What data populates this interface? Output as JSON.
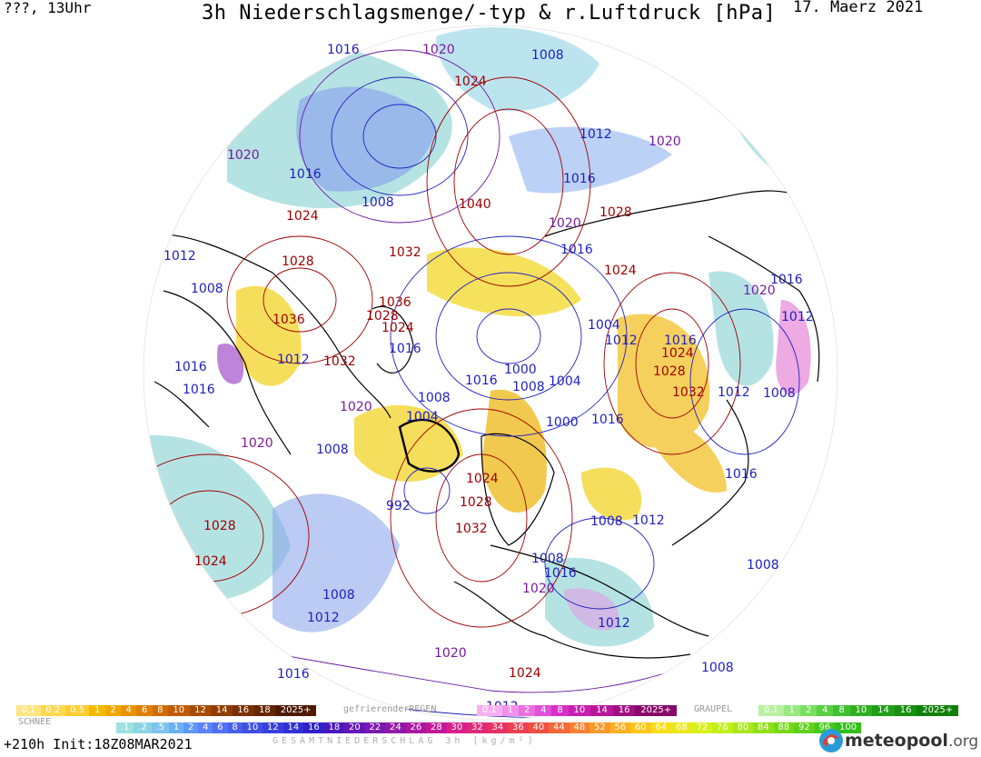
{
  "header": {
    "left": "???, 13Uhr",
    "title": "3h Niederschlagsmenge/-typ & r.Luftdruck [hPa]",
    "date": "17. Maerz 2021"
  },
  "isobar_labels": [
    {
      "text": "1016",
      "color": "#2020c0"
    },
    {
      "text": "1020",
      "color": "#7a1aa0"
    },
    {
      "text": "1008",
      "color": "#2020c0"
    },
    {
      "text": "1024",
      "color": "#a00000"
    },
    {
      "text": "1020",
      "color": "#7a1aa0"
    },
    {
      "text": "1016",
      "color": "#2020c0"
    },
    {
      "text": "1008",
      "color": "#2020c0"
    },
    {
      "text": "1024",
      "color": "#a00000"
    },
    {
      "text": "1040",
      "color": "#a00000"
    },
    {
      "text": "1012",
      "color": "#2020c0"
    },
    {
      "text": "1020",
      "color": "#7a1aa0"
    },
    {
      "text": "1016",
      "color": "#2020c0"
    },
    {
      "text": "1028",
      "color": "#a00000"
    },
    {
      "text": "1020",
      "color": "#7a1aa0"
    },
    {
      "text": "1012",
      "color": "#2020c0"
    },
    {
      "text": "1028",
      "color": "#a00000"
    },
    {
      "text": "1032",
      "color": "#a00000"
    },
    {
      "text": "1016",
      "color": "#2020c0"
    },
    {
      "text": "1024",
      "color": "#a00000"
    },
    {
      "text": "1008",
      "color": "#2020c0"
    },
    {
      "text": "1036",
      "color": "#a00000"
    },
    {
      "text": "1028",
      "color": "#a00000"
    },
    {
      "text": "1024",
      "color": "#a00000"
    },
    {
      "text": "1036",
      "color": "#a00000"
    },
    {
      "text": "1020",
      "color": "#7a1aa0"
    },
    {
      "text": "1016",
      "color": "#2020c0"
    },
    {
      "text": "1004",
      "color": "#2020c0"
    },
    {
      "text": "1012",
      "color": "#2020c0"
    },
    {
      "text": "1016",
      "color": "#2020c0"
    },
    {
      "text": "1012",
      "color": "#2020c0"
    },
    {
      "text": "1032",
      "color": "#a00000"
    },
    {
      "text": "1016",
      "color": "#2020c0"
    },
    {
      "text": "1024",
      "color": "#a00000"
    },
    {
      "text": "1012",
      "color": "#2020c0"
    },
    {
      "text": "1016",
      "color": "#2020c0"
    },
    {
      "text": "1016",
      "color": "#2020c0"
    },
    {
      "text": "1000",
      "color": "#2020c0"
    },
    {
      "text": "1008",
      "color": "#2020c0"
    },
    {
      "text": "1004",
      "color": "#2020c0"
    },
    {
      "text": "1028",
      "color": "#a00000"
    },
    {
      "text": "1016",
      "color": "#2020c0"
    },
    {
      "text": "1032",
      "color": "#a00000"
    },
    {
      "text": "1012",
      "color": "#2020c0"
    },
    {
      "text": "1008",
      "color": "#2020c0"
    },
    {
      "text": "1020",
      "color": "#7a1aa0"
    },
    {
      "text": "1008",
      "color": "#2020c0"
    },
    {
      "text": "1004",
      "color": "#2020c0"
    },
    {
      "text": "1000",
      "color": "#2020c0"
    },
    {
      "text": "1016",
      "color": "#2020c0"
    },
    {
      "text": "1020",
      "color": "#7a1aa0"
    },
    {
      "text": "1008",
      "color": "#2020c0"
    },
    {
      "text": "1016",
      "color": "#2020c0"
    },
    {
      "text": "1024",
      "color": "#a00000"
    },
    {
      "text": "992",
      "color": "#2020c0"
    },
    {
      "text": "1028",
      "color": "#a00000"
    },
    {
      "text": "1028",
      "color": "#a00000"
    },
    {
      "text": "1032",
      "color": "#a00000"
    },
    {
      "text": "1024",
      "color": "#a00000"
    },
    {
      "text": "1008",
      "color": "#2020c0"
    },
    {
      "text": "1012",
      "color": "#2020c0"
    },
    {
      "text": "1008",
      "color": "#2020c0"
    },
    {
      "text": "1016",
      "color": "#2020c0"
    },
    {
      "text": "1008",
      "color": "#2020c0"
    },
    {
      "text": "1020",
      "color": "#7a1aa0"
    },
    {
      "text": "1008",
      "color": "#2020c0"
    },
    {
      "text": "1012",
      "color": "#2020c0"
    },
    {
      "text": "1012",
      "color": "#2020c0"
    },
    {
      "text": "1020",
      "color": "#7a1aa0"
    },
    {
      "text": "1024",
      "color": "#a00000"
    },
    {
      "text": "1016",
      "color": "#2020c0"
    },
    {
      "text": "1008",
      "color": "#2020c0"
    },
    {
      "text": "1012",
      "color": "#2020c0"
    }
  ],
  "legends": {
    "snow": {
      "title": "SCHNEE",
      "cells": [
        "0.1",
        "0.2",
        "0.5",
        "1",
        "2",
        "4",
        "6",
        "8",
        "10",
        "12",
        "14",
        "16",
        "18",
        "2025+"
      ],
      "colors": [
        "#ffe680",
        "#ffd84d",
        "#ffcc33",
        "#f5b800",
        "#f0a800",
        "#e89400",
        "#e08000",
        "#d06c00",
        "#c05a00",
        "#a84a00",
        "#903c00",
        "#7a3000",
        "#662600",
        "#4d1a00"
      ]
    },
    "freezing_rain": {
      "title": "gefrierenderREGEN",
      "cells": [
        "0.1",
        "1",
        "2",
        "4",
        "8",
        "10",
        "14",
        "16",
        "2025+"
      ],
      "colors": [
        "#f8b0f0",
        "#f090e8",
        "#e870e0",
        "#e050d8",
        "#d830c8",
        "#c820b0",
        "#b81898",
        "#a01080",
        "#880868"
      ]
    },
    "graupel": {
      "title": "GRAUPEL",
      "cells": [
        "0.1",
        "1",
        "2",
        "4",
        "8",
        "10",
        "14",
        "16",
        "2025+"
      ],
      "colors": [
        "#b8f0a0",
        "#98e880",
        "#78e060",
        "#58d040",
        "#40c030",
        "#30b020",
        "#20a018",
        "#189010",
        "#108008"
      ]
    },
    "total": {
      "title": "GESAMTNIEDERSCHLAG 3h [kg/m²]",
      "cells": [
        ".1",
        ".2",
        ".5",
        "1",
        "2",
        "4",
        "6",
        "8",
        "10",
        "12",
        "14",
        "16",
        "18",
        "20",
        "22",
        "24",
        "26",
        "28",
        "30",
        "32",
        "34",
        "36",
        "40",
        "44",
        "48",
        "52",
        "56",
        "60",
        "64",
        "68",
        "72",
        "76",
        "80",
        "84",
        "88",
        "92",
        "96",
        "100"
      ],
      "colors": [
        "#9ee0e0",
        "#8cd4e4",
        "#7cc4ec",
        "#6cb0f4",
        "#6098f8",
        "#5a84f8",
        "#5070f4",
        "#4860ec",
        "#4050e4",
        "#3840dc",
        "#3030d4",
        "#3020c8",
        "#4a18c0",
        "#6418b8",
        "#7c18b0",
        "#9418a8",
        "#ac18a0",
        "#c41898",
        "#d8208c",
        "#e02878",
        "#e83064",
        "#ec4050",
        "#f05040",
        "#f46838",
        "#f88030",
        "#fa9828",
        "#fcb020",
        "#fcc818",
        "#f8dc18",
        "#eae818",
        "#d8f018",
        "#c0f018",
        "#a8e818",
        "#90e018",
        "#78d818",
        "#60d018",
        "#48c818",
        "#30c018"
      ]
    }
  },
  "footer": {
    "left": "+210h  Init:18Z08MAR2021",
    "logo": "meteopool",
    "logo_tld": ".org"
  }
}
